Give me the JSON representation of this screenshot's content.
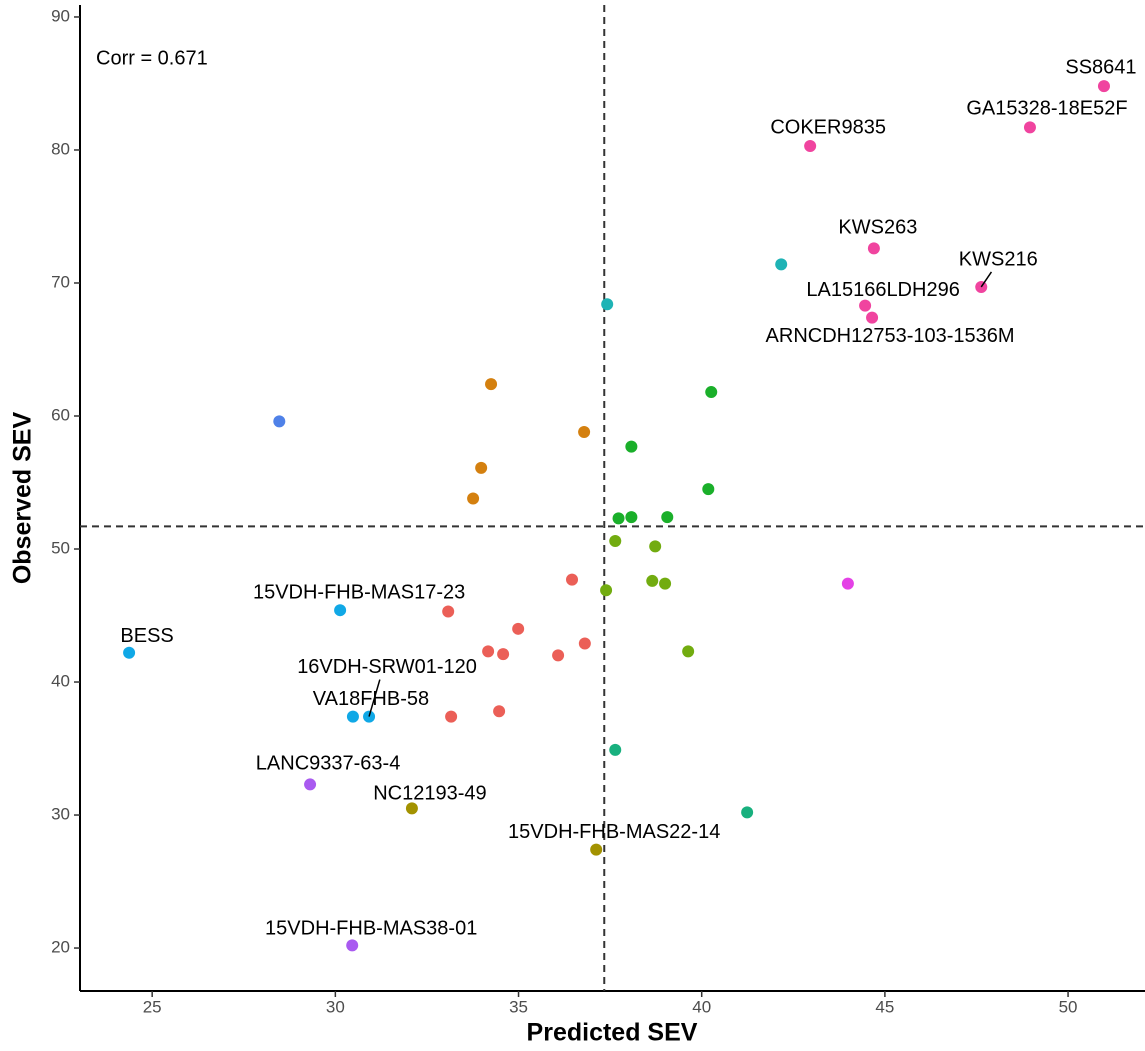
{
  "chart_data": {
    "type": "scatter",
    "x_label": "Predicted SEV",
    "y_label": "Observed SEV",
    "annotation": "Corr =  0.671",
    "xlim": [
      23.03,
      52.1
    ],
    "ylim": [
      16.77,
      90.9
    ],
    "xticks": [
      25,
      30,
      35,
      40,
      45,
      50
    ],
    "yticks": [
      20,
      30,
      40,
      50,
      60,
      70,
      80,
      90
    ],
    "x_ref": 37.34,
    "y_ref": 51.7,
    "series": [
      {
        "color": "#F0449F",
        "x": [
          50.98,
          48.96,
          42.96,
          44.7,
          47.63,
          44.46,
          44.65
        ],
        "values": [
          84.8,
          81.7,
          80.3,
          72.6,
          69.7,
          68.3,
          67.4
        ],
        "labels": [
          "SS8641",
          "GA15328-18E52F",
          "COKER9835",
          "KWS263",
          "KWS216",
          "LA15166LDH296",
          "ARNCDH12753-103-1536M"
        ]
      },
      {
        "color": "#1EB3B5",
        "x": [
          42.17,
          37.42
        ],
        "values": [
          71.4,
          68.4
        ]
      },
      {
        "color": "#4F81E8",
        "x": [
          28.47
        ],
        "values": [
          59.6
        ]
      },
      {
        "color": "#D4800F",
        "x": [
          34.25,
          36.79,
          33.98,
          33.76
        ],
        "values": [
          62.4,
          58.8,
          56.1,
          53.8
        ]
      },
      {
        "color": "#1AAF2A",
        "x": [
          40.26,
          38.08,
          40.18,
          37.73,
          38.08,
          39.06
        ],
        "values": [
          61.8,
          57.7,
          54.5,
          52.3,
          52.4,
          52.4
        ]
      },
      {
        "color": "#72AC10",
        "x": [
          37.64,
          38.73,
          38.65,
          39.0,
          37.39,
          39.63
        ],
        "values": [
          50.6,
          50.2,
          47.6,
          47.4,
          46.9,
          42.3
        ]
      },
      {
        "color": "#E441E6",
        "x": [
          43.99
        ],
        "values": [
          47.4
        ]
      },
      {
        "color": "#EB5F57",
        "x": [
          36.46,
          33.08,
          34.99,
          34.17,
          34.58,
          36.08,
          36.81,
          33.16,
          34.47
        ],
        "values": [
          47.7,
          45.3,
          44.0,
          42.3,
          42.1,
          42.0,
          42.9,
          37.4,
          37.8
        ]
      },
      {
        "color": "#10A8E6",
        "x": [
          30.13,
          24.37,
          30.92,
          30.48
        ],
        "values": [
          45.4,
          42.2,
          37.4,
          37.4
        ],
        "labels": [
          "15VDH-FHB-MAS17-23",
          "BESS",
          "16VDH-SRW01-120",
          "VA18FHB-58"
        ]
      },
      {
        "color": "#18B07E",
        "x": [
          37.64,
          41.24
        ],
        "values": [
          34.9,
          30.2
        ]
      },
      {
        "color": "#A95AF0",
        "x": [
          29.31,
          30.46
        ],
        "values": [
          32.3,
          20.2
        ],
        "labels": [
          "LANC9337-63-4",
          "15VDH-FHB-MAS38-01"
        ]
      },
      {
        "color": "#A39200",
        "x": [
          32.09,
          37.12
        ],
        "values": [
          30.5,
          27.4
        ],
        "labels": [
          "NC12193-49",
          "15VDH-FHB-MAS22-14"
        ]
      }
    ]
  }
}
